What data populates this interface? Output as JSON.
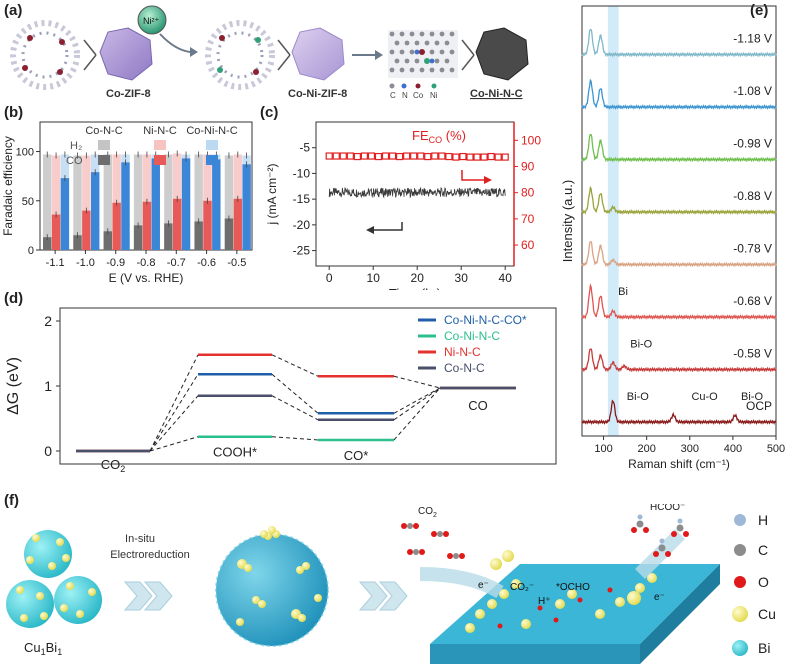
{
  "panels": {
    "a": "(a)",
    "b": "(b)",
    "c": "(c)",
    "d": "(d)",
    "e": "(e)",
    "f": "(f)"
  },
  "panel_a": {
    "ion_label": "Ni²⁺",
    "labels": [
      "Co-ZIF-8",
      "Co-Ni-ZIF-8",
      "Co-Ni-N-C"
    ],
    "atom_legend": [
      "C",
      "N",
      "Co",
      "Ni"
    ]
  },
  "panel_f": {
    "precursor_label": "Cu",
    "precursor_sub1": "1",
    "precursor_mid": "Bi",
    "precursor_sub2": "1",
    "arrow_label_line1": "In-situ",
    "arrow_label_line2": "Electroreduction",
    "co2_label": "CO",
    "co2_sub": "2",
    "hcoo_label": "HCOO⁻",
    "electron_label": "e⁻",
    "surface_co2": "CO₂⁻",
    "surface_ocho": "*OCHO",
    "surface_h": "H⁺",
    "legend": [
      {
        "label": "H",
        "color": "#9fb8d6"
      },
      {
        "label": "C",
        "color": "#8c8c8c"
      },
      {
        "label": "O",
        "color": "#e0191a"
      },
      {
        "label": "Cu",
        "color": "#f2ec6b"
      },
      {
        "label": "Bi",
        "color": "#2fb1d8"
      }
    ]
  },
  "chart_data": [
    {
      "id": "b",
      "type": "bar",
      "title": "",
      "xlabel": "E (V vs. RHE)",
      "ylabel": "Faradaic efficiency",
      "ylim": [
        0,
        130
      ],
      "yticks": [
        0,
        50,
        100
      ],
      "categories": [
        "-1.1",
        "-1.0",
        "-0.9",
        "-0.8",
        "-0.7",
        "-0.6",
        "-0.5"
      ],
      "legend_columns": [
        "Co-N-C",
        "Ni-N-C",
        "Co-Ni-N-C"
      ],
      "legend_rows": [
        "H2",
        "CO"
      ],
      "legend_row_display": [
        "H₂",
        "CO"
      ],
      "series": [
        {
          "name": "Co-N-C H2",
          "color": "#c4c4c4",
          "values": [
            97,
            96,
            97,
            97,
            97,
            97,
            96
          ]
        },
        {
          "name": "Co-N-C CO",
          "color": "#6e6e6e",
          "values": [
            13,
            15,
            19,
            25,
            27,
            29,
            32
          ]
        },
        {
          "name": "Ni-N-C H2",
          "color": "#f6c3c1",
          "values": [
            96,
            96,
            97,
            97,
            98,
            97,
            97
          ]
        },
        {
          "name": "Ni-N-C CO",
          "color": "#e85a57",
          "values": [
            36,
            40,
            48,
            49,
            52,
            50,
            52
          ]
        },
        {
          "name": "Co-Ni-N-C H2",
          "color": "#bcd9f2",
          "values": [
            97,
            97,
            97,
            97,
            97,
            97,
            96
          ]
        },
        {
          "name": "Co-Ni-N-C CO",
          "color": "#3b86d6",
          "values": [
            73,
            79,
            89,
            93,
            93,
            92,
            87
          ]
        }
      ]
    },
    {
      "id": "c",
      "type": "line",
      "xlabel": "Time (hr)",
      "ylabel": "j (mA cm⁻²)",
      "y2label_main": "FE",
      "y2label_sub": "CO",
      "y2label_unit": " (%)",
      "xlim": [
        -3,
        42
      ],
      "xticks": [
        0,
        10,
        20,
        30,
        40
      ],
      "ylim": [
        -28,
        0
      ],
      "yticks": [
        -5,
        -10,
        -15,
        -20,
        -25
      ],
      "ytick_labels": [
        "-5",
        "-10",
        "-15",
        "-20",
        "-25"
      ],
      "y2lim": [
        52,
        107
      ],
      "y2ticks": [
        60,
        70,
        80,
        90,
        100
      ],
      "current_density": {
        "name": "j",
        "color": "#3a3a3a",
        "mean": -13.7,
        "noise": 0.9,
        "x_range": [
          0,
          40
        ]
      },
      "fe_co": {
        "name": "FE_CO",
        "color": "#e02020",
        "x": [
          0,
          1.6,
          3.2,
          4.8,
          6.4,
          8,
          9.6,
          11.2,
          12.8,
          14.4,
          16,
          17.6,
          19.2,
          20.8,
          22.4,
          24,
          25.6,
          27.2,
          28.8,
          30.4,
          32,
          33.6,
          35.2,
          36.8,
          38.4,
          40
        ],
        "values": [
          94,
          94,
          94,
          94,
          93.8,
          94,
          94,
          93.8,
          94,
          94,
          93.8,
          94,
          94,
          94,
          93.8,
          94,
          94,
          93.8,
          93.6,
          93.8,
          93.6,
          93.6,
          93.6,
          93.8,
          93.6,
          93.6
        ]
      }
    },
    {
      "id": "d",
      "type": "line",
      "chart_kind": "energy-diagram",
      "ylabel": "ΔG (eV)",
      "ylim": [
        -0.2,
        2.2
      ],
      "yticks": [
        0,
        1,
        2
      ],
      "states": [
        "CO2",
        "COOH*",
        "CO*",
        "CO"
      ],
      "state_labels": [
        {
          "main": "CO",
          "sub": "2"
        },
        {
          "main": "COOH*",
          "sub": ""
        },
        {
          "main": "CO*",
          "sub": ""
        },
        {
          "main": "CO",
          "sub": ""
        }
      ],
      "series": [
        {
          "name": "Co-Ni-N-C-CO*",
          "color": "#1f5fa8",
          "values": [
            0,
            1.18,
            0.58,
            0.97
          ]
        },
        {
          "name": "Co-Ni-N-C",
          "color": "#2bbf8e",
          "values": [
            0,
            0.22,
            0.17,
            0.97
          ]
        },
        {
          "name": "Ni-N-C",
          "color": "#e4312e",
          "values": [
            0,
            1.48,
            1.15,
            0.97
          ]
        },
        {
          "name": "Co-N-C",
          "color": "#4a4f6a",
          "values": [
            0,
            0.85,
            0.48,
            0.97
          ]
        }
      ]
    },
    {
      "id": "e",
      "type": "line",
      "chart_kind": "stacked-spectra",
      "xlabel": "Raman shift (cm⁻¹)",
      "ylabel": "Intensity (a.u.)",
      "xlim": [
        50,
        500
      ],
      "xticks": [
        100,
        200,
        300,
        400,
        500
      ],
      "highlight_band": [
        110,
        135
      ],
      "series": [
        {
          "name": "-1.18 V",
          "color": "#7fb8c9",
          "peaks": [
            [
              70,
              1.1
            ],
            [
              93,
              0.8
            ]
          ]
        },
        {
          "name": "-1.08 V",
          "color": "#3c95d0",
          "peaks": [
            [
              70,
              1.1
            ],
            [
              93,
              0.8
            ]
          ]
        },
        {
          "name": "-0.98 V",
          "color": "#6fbf4f",
          "peaks": [
            [
              70,
              1.1
            ],
            [
              93,
              0.8
            ]
          ]
        },
        {
          "name": "-0.88 V",
          "color": "#9aa33a",
          "peaks": [
            [
              70,
              1.0
            ],
            [
              93,
              0.8
            ],
            [
              122,
              0.2
            ]
          ]
        },
        {
          "name": "-0.78 V",
          "color": "#d9a383",
          "peaks": [
            [
              70,
              1.0
            ],
            [
              93,
              0.8
            ],
            [
              122,
              0.2
            ]
          ]
        },
        {
          "name": "-0.68 V",
          "color": "#e05550",
          "peaks": [
            [
              70,
              1.3
            ],
            [
              93,
              0.9
            ],
            [
              122,
              0.25
            ]
          ]
        },
        {
          "name": "-0.58 V",
          "color": "#c83a3a",
          "peaks": [
            [
              70,
              0.9
            ],
            [
              93,
              0.6
            ],
            [
              122,
              0.3
            ],
            [
              148,
              0.15
            ]
          ]
        },
        {
          "name": "OCP",
          "color": "#8a1a1a",
          "peaks": [
            [
              122,
              0.9
            ],
            [
              262,
              0.3
            ],
            [
              405,
              0.28
            ]
          ]
        }
      ],
      "annotations": [
        {
          "text": "Bi",
          "x": 120,
          "curve": "-0.68 V"
        },
        {
          "text": "Bi-O",
          "x": 148,
          "curve": "-0.58 V"
        },
        {
          "text": "Bi-O",
          "x": 140,
          "curve": "OCP"
        },
        {
          "text": "Cu-O",
          "x": 290,
          "curve": "OCP"
        },
        {
          "text": "Bi-O",
          "x": 405,
          "curve": "OCP"
        }
      ]
    }
  ]
}
